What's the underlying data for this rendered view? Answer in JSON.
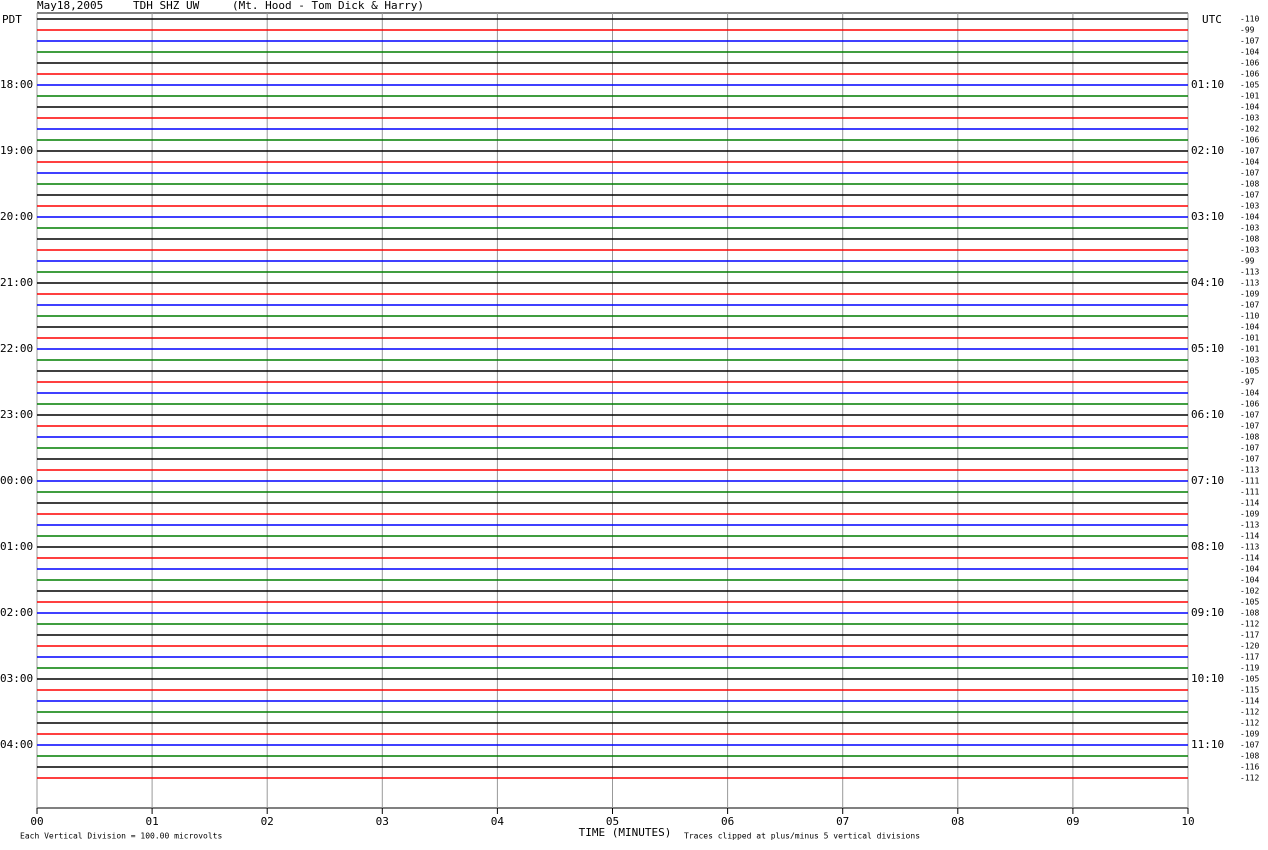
{
  "header": {
    "date": "May18,2005",
    "station": "TDH SHZ UW",
    "location": "(Mt. Hood - Tom Dick & Harry)"
  },
  "left_title": "PDT",
  "right_title": "UTC",
  "trace_colors": [
    "#000000",
    "#ff0000",
    "#0000ff",
    "#007f00"
  ],
  "rows": [
    {
      "offset": -110
    },
    {
      "offset": -99
    },
    {
      "offset": -107
    },
    {
      "offset": -104
    },
    {
      "offset": -106
    },
    {
      "offset": -106
    },
    {
      "offset": -105,
      "pdt": "18:00",
      "utc": "01:10"
    },
    {
      "offset": -101
    },
    {
      "offset": -104
    },
    {
      "offset": -103
    },
    {
      "offset": -102
    },
    {
      "offset": -106
    },
    {
      "offset": -107,
      "pdt": "19:00",
      "utc": "02:10"
    },
    {
      "offset": -104
    },
    {
      "offset": -107
    },
    {
      "offset": -108
    },
    {
      "offset": -107
    },
    {
      "offset": -103
    },
    {
      "offset": -104,
      "pdt": "20:00",
      "utc": "03:10"
    },
    {
      "offset": -103
    },
    {
      "offset": -108
    },
    {
      "offset": -103
    },
    {
      "offset": -99
    },
    {
      "offset": -113
    },
    {
      "offset": -113,
      "pdt": "21:00",
      "utc": "04:10"
    },
    {
      "offset": -109
    },
    {
      "offset": -107
    },
    {
      "offset": -110
    },
    {
      "offset": -104
    },
    {
      "offset": -101
    },
    {
      "offset": -101,
      "pdt": "22:00",
      "utc": "05:10"
    },
    {
      "offset": -103
    },
    {
      "offset": -105
    },
    {
      "offset": -97
    },
    {
      "offset": -104
    },
    {
      "offset": -106
    },
    {
      "offset": -107,
      "pdt": "23:00",
      "utc": "06:10"
    },
    {
      "offset": -107
    },
    {
      "offset": -108
    },
    {
      "offset": -107
    },
    {
      "offset": -107
    },
    {
      "offset": -113
    },
    {
      "offset": -111,
      "pdt": "00:00",
      "utc": "07:10"
    },
    {
      "offset": -111
    },
    {
      "offset": -114
    },
    {
      "offset": -109
    },
    {
      "offset": -113
    },
    {
      "offset": -114
    },
    {
      "offset": -113,
      "pdt": "01:00",
      "utc": "08:10"
    },
    {
      "offset": -114
    },
    {
      "offset": -104
    },
    {
      "offset": -104
    },
    {
      "offset": -102
    },
    {
      "offset": -105
    },
    {
      "offset": -108,
      "pdt": "02:00",
      "utc": "09:10"
    },
    {
      "offset": -112
    },
    {
      "offset": -117
    },
    {
      "offset": -120
    },
    {
      "offset": -117
    },
    {
      "offset": -119
    },
    {
      "offset": -105,
      "pdt": "03:00",
      "utc": "10:10"
    },
    {
      "offset": -115
    },
    {
      "offset": -114
    },
    {
      "offset": -112
    },
    {
      "offset": -112
    },
    {
      "offset": -109
    },
    {
      "offset": -107,
      "pdt": "04:00",
      "utc": "11:10"
    },
    {
      "offset": -108
    },
    {
      "offset": -116
    },
    {
      "offset": -112
    }
  ],
  "x_ticks": [
    "00",
    "01",
    "02",
    "03",
    "04",
    "05",
    "06",
    "07",
    "08",
    "09",
    "10"
  ],
  "x_title": "TIME (MINUTES)",
  "footer_left": "Each Vertical Division =  100.00 microvolts",
  "footer_right": "Traces clipped at plus/minus 5 vertical divisions"
}
